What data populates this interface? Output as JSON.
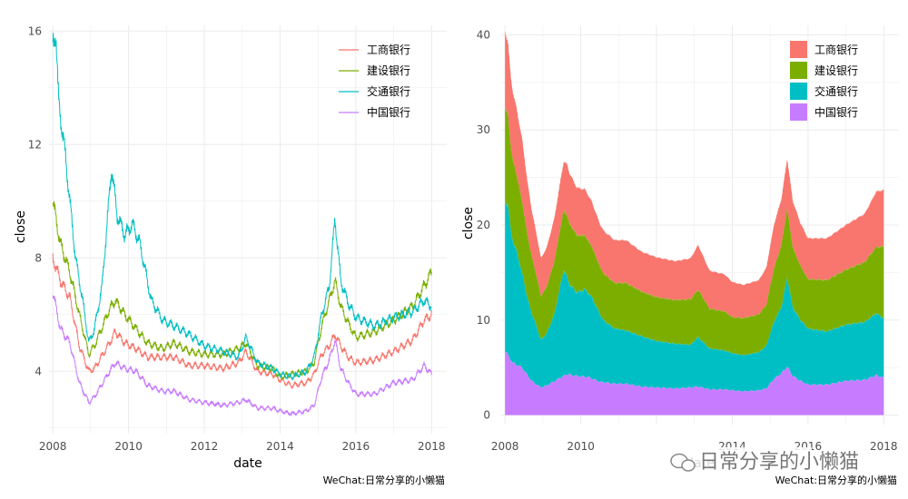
{
  "chart_data": [
    {
      "type": "line",
      "xlabel": "date",
      "ylabel": "close",
      "x_ticks": [
        "2008",
        "2010",
        "2012",
        "2014",
        "2016",
        "2018"
      ],
      "y_ticks": [
        "4",
        "8",
        "12",
        "16"
      ],
      "xlim": [
        2007.9,
        2018.4
      ],
      "ylim": [
        1.8,
        16.2
      ],
      "grid": true,
      "legend_position": "top-right",
      "caption": "WeChat:日常分享的小懒猫",
      "series": [
        {
          "name": "工商银行",
          "color": "#F8766D",
          "points": [
            [
              2008.0,
              8.0
            ],
            [
              2008.2,
              7.2
            ],
            [
              2008.45,
              6.6
            ],
            [
              2008.7,
              4.9
            ],
            [
              2008.95,
              4.0
            ],
            [
              2009.1,
              4.1
            ],
            [
              2009.5,
              5.0
            ],
            [
              2009.65,
              5.4
            ],
            [
              2009.9,
              5.0
            ],
            [
              2010.2,
              4.8
            ],
            [
              2010.5,
              4.5
            ],
            [
              2010.9,
              4.5
            ],
            [
              2011.2,
              4.5
            ],
            [
              2011.6,
              4.2
            ],
            [
              2012.0,
              4.2
            ],
            [
              2012.5,
              4.1
            ],
            [
              2012.9,
              4.3
            ],
            [
              2013.1,
              4.7
            ],
            [
              2013.4,
              4.0
            ],
            [
              2013.8,
              3.9
            ],
            [
              2014.0,
              3.7
            ],
            [
              2014.3,
              3.5
            ],
            [
              2014.7,
              3.6
            ],
            [
              2014.9,
              3.9
            ],
            [
              2015.1,
              4.6
            ],
            [
              2015.3,
              4.9
            ],
            [
              2015.45,
              5.3
            ],
            [
              2015.6,
              4.9
            ],
            [
              2015.8,
              4.5
            ],
            [
              2016.0,
              4.3
            ],
            [
              2016.5,
              4.4
            ],
            [
              2017.0,
              4.7
            ],
            [
              2017.5,
              5.1
            ],
            [
              2017.8,
              5.8
            ],
            [
              2018.0,
              6.0
            ]
          ]
        },
        {
          "name": "建设银行",
          "color": "#7CAE00",
          "points": [
            [
              2008.0,
              10.0
            ],
            [
              2008.2,
              8.5
            ],
            [
              2008.45,
              7.5
            ],
            [
              2008.7,
              6.0
            ],
            [
              2008.95,
              4.6
            ],
            [
              2009.1,
              4.9
            ],
            [
              2009.5,
              6.2
            ],
            [
              2009.65,
              6.5
            ],
            [
              2009.9,
              6.0
            ],
            [
              2010.2,
              5.5
            ],
            [
              2010.5,
              5.0
            ],
            [
              2010.9,
              4.8
            ],
            [
              2011.2,
              5.0
            ],
            [
              2011.6,
              4.7
            ],
            [
              2012.0,
              4.6
            ],
            [
              2012.5,
              4.6
            ],
            [
              2012.9,
              4.8
            ],
            [
              2013.1,
              5.0
            ],
            [
              2013.4,
              4.2
            ],
            [
              2013.8,
              4.1
            ],
            [
              2014.0,
              3.8
            ],
            [
              2014.3,
              3.9
            ],
            [
              2014.7,
              4.0
            ],
            [
              2014.9,
              4.3
            ],
            [
              2015.1,
              5.6
            ],
            [
              2015.3,
              6.5
            ],
            [
              2015.45,
              7.2
            ],
            [
              2015.6,
              6.3
            ],
            [
              2015.8,
              5.7
            ],
            [
              2016.0,
              5.2
            ],
            [
              2016.5,
              5.4
            ],
            [
              2017.0,
              5.8
            ],
            [
              2017.5,
              6.3
            ],
            [
              2017.8,
              7.0
            ],
            [
              2018.0,
              7.5
            ]
          ]
        },
        {
          "name": "交通银行",
          "color": "#00BFC4",
          "points": [
            [
              2008.0,
              15.5
            ],
            [
              2008.08,
              16.0
            ],
            [
              2008.15,
              13.5
            ],
            [
              2008.3,
              12.0
            ],
            [
              2008.45,
              10.0
            ],
            [
              2008.6,
              8.0
            ],
            [
              2008.8,
              6.4
            ],
            [
              2008.95,
              5.0
            ],
            [
              2009.1,
              5.5
            ],
            [
              2009.3,
              7.0
            ],
            [
              2009.45,
              9.5
            ],
            [
              2009.55,
              11.2
            ],
            [
              2009.7,
              9.5
            ],
            [
              2009.9,
              8.8
            ],
            [
              2010.1,
              9.2
            ],
            [
              2010.3,
              8.5
            ],
            [
              2010.6,
              6.5
            ],
            [
              2010.9,
              5.8
            ],
            [
              2011.2,
              5.6
            ],
            [
              2011.6,
              5.3
            ],
            [
              2012.0,
              4.9
            ],
            [
              2012.5,
              4.7
            ],
            [
              2012.9,
              4.5
            ],
            [
              2013.1,
              5.2
            ],
            [
              2013.4,
              4.3
            ],
            [
              2013.8,
              4.1
            ],
            [
              2014.0,
              3.9
            ],
            [
              2014.3,
              3.8
            ],
            [
              2014.7,
              4.0
            ],
            [
              2014.9,
              4.5
            ],
            [
              2015.1,
              6.0
            ],
            [
              2015.3,
              7.0
            ],
            [
              2015.45,
              9.4
            ],
            [
              2015.6,
              7.2
            ],
            [
              2015.8,
              6.4
            ],
            [
              2016.0,
              5.9
            ],
            [
              2016.5,
              5.6
            ],
            [
              2017.0,
              5.9
            ],
            [
              2017.5,
              6.1
            ],
            [
              2017.8,
              6.5
            ],
            [
              2018.0,
              6.3
            ]
          ]
        },
        {
          "name": "中国银行",
          "color": "#C77CFF",
          "points": [
            [
              2008.0,
              6.8
            ],
            [
              2008.2,
              5.5
            ],
            [
              2008.45,
              5.0
            ],
            [
              2008.7,
              3.6
            ],
            [
              2008.95,
              2.9
            ],
            [
              2009.1,
              3.1
            ],
            [
              2009.5,
              4.0
            ],
            [
              2009.65,
              4.3
            ],
            [
              2009.9,
              4.1
            ],
            [
              2010.2,
              4.0
            ],
            [
              2010.5,
              3.5
            ],
            [
              2010.9,
              3.3
            ],
            [
              2011.2,
              3.3
            ],
            [
              2011.6,
              3.0
            ],
            [
              2012.0,
              2.9
            ],
            [
              2012.5,
              2.8
            ],
            [
              2012.9,
              2.9
            ],
            [
              2013.1,
              3.0
            ],
            [
              2013.4,
              2.7
            ],
            [
              2013.8,
              2.7
            ],
            [
              2014.0,
              2.6
            ],
            [
              2014.3,
              2.5
            ],
            [
              2014.7,
              2.6
            ],
            [
              2014.9,
              2.8
            ],
            [
              2015.1,
              3.8
            ],
            [
              2015.3,
              4.4
            ],
            [
              2015.45,
              5.1
            ],
            [
              2015.6,
              4.1
            ],
            [
              2015.8,
              3.6
            ],
            [
              2016.0,
              3.2
            ],
            [
              2016.5,
              3.2
            ],
            [
              2017.0,
              3.6
            ],
            [
              2017.5,
              3.7
            ],
            [
              2017.8,
              4.2
            ],
            [
              2018.0,
              3.9
            ]
          ]
        }
      ]
    },
    {
      "type": "area",
      "stacked": true,
      "xlabel": "date",
      "ylabel": "close",
      "x_ticks": [
        "2008",
        "2010",
        "2014",
        "2016",
        "2018"
      ],
      "y_ticks": [
        "0",
        "10",
        "20",
        "30",
        "40"
      ],
      "xlim": [
        2007.9,
        2018.4
      ],
      "ylim": [
        -1,
        41
      ],
      "grid": true,
      "legend_position": "top-right",
      "caption": "WeChat:日常分享的小懒猫",
      "watermark": "日常分享的小懒猫",
      "stack_order_bottom_to_top": [
        "中国银行",
        "交通银行",
        "建设银行",
        "工商银行"
      ]
    }
  ]
}
